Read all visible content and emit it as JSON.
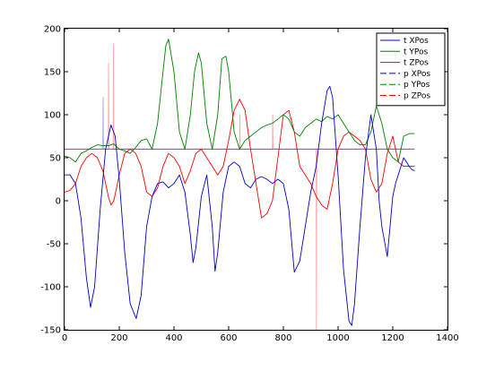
{
  "chart_data": {
    "type": "line",
    "title": "",
    "xlabel": "",
    "ylabel": "",
    "xlim": [
      0,
      1400
    ],
    "ylim": [
      -150,
      200
    ],
    "xticks": [
      0,
      200,
      400,
      600,
      800,
      1000,
      1200,
      1400
    ],
    "yticks": [
      -150,
      -100,
      -50,
      0,
      50,
      100,
      150,
      200
    ],
    "grid": false,
    "legend_position": "top-right",
    "series": [
      {
        "name": "t XPos",
        "color": "#0000cc",
        "style": "solid",
        "x": [
          0,
          20,
          40,
          60,
          80,
          95,
          110,
          130,
          150,
          170,
          185,
          200,
          220,
          240,
          262,
          280,
          300,
          320,
          340,
          360,
          380,
          400,
          420,
          440,
          460,
          470,
          480,
          500,
          520,
          540,
          550,
          560,
          580,
          600,
          620,
          640,
          660,
          680,
          700,
          720,
          740,
          760,
          780,
          800,
          820,
          840,
          860,
          880,
          900,
          920,
          940,
          960,
          970,
          980,
          1000,
          1020,
          1040,
          1050,
          1060,
          1080,
          1100,
          1120,
          1140,
          1150,
          1160,
          1180,
          1200,
          1210,
          1220,
          1240,
          1260,
          1270,
          1280
        ],
        "y": [
          30,
          30,
          20,
          -20,
          -90,
          -124,
          -100,
          -10,
          60,
          88,
          75,
          25,
          -60,
          -120,
          -137,
          -110,
          -30,
          5,
          20,
          22,
          15,
          20,
          30,
          10,
          -40,
          -72,
          -55,
          5,
          30,
          -30,
          -82,
          -60,
          10,
          40,
          45,
          40,
          20,
          15,
          25,
          28,
          25,
          20,
          25,
          20,
          -10,
          -83,
          -70,
          -30,
          10,
          40,
          90,
          128,
          133,
          120,
          30,
          -80,
          -140,
          -145,
          -120,
          -30,
          50,
          100,
          60,
          0,
          -30,
          -65,
          5,
          20,
          30,
          50,
          40,
          36,
          35
        ]
      },
      {
        "name": "t YPos",
        "color": "#008000",
        "style": "solid",
        "x": [
          0,
          20,
          40,
          60,
          80,
          100,
          120,
          140,
          160,
          180,
          200,
          220,
          240,
          260,
          280,
          300,
          320,
          340,
          360,
          370,
          380,
          400,
          420,
          440,
          460,
          475,
          490,
          500,
          520,
          540,
          560,
          575,
          590,
          600,
          620,
          640,
          660,
          680,
          700,
          720,
          740,
          760,
          780,
          800,
          820,
          840,
          860,
          880,
          900,
          920,
          940,
          960,
          980,
          1000,
          1020,
          1040,
          1060,
          1080,
          1100,
          1120,
          1140,
          1160,
          1180,
          1200,
          1220,
          1240,
          1260,
          1280
        ],
        "y": [
          52,
          50,
          45,
          55,
          58,
          62,
          65,
          64,
          64,
          66,
          60,
          58,
          55,
          62,
          70,
          72,
          60,
          90,
          150,
          180,
          188,
          150,
          80,
          60,
          100,
          150,
          172,
          160,
          90,
          60,
          100,
          165,
          168,
          150,
          80,
          60,
          70,
          75,
          80,
          85,
          88,
          90,
          95,
          100,
          95,
          80,
          75,
          85,
          90,
          95,
          92,
          98,
          95,
          100,
          90,
          80,
          70,
          65,
          65,
          80,
          110,
          90,
          60,
          50,
          45,
          75,
          78,
          78
        ]
      },
      {
        "name": "t ZPos",
        "color": "#ff0000",
        "style": "solid",
        "x": [
          0,
          20,
          40,
          60,
          80,
          100,
          120,
          140,
          160,
          170,
          180,
          200,
          220,
          240,
          260,
          280,
          300,
          320,
          340,
          360,
          380,
          400,
          420,
          440,
          460,
          480,
          500,
          520,
          540,
          560,
          580,
          600,
          620,
          640,
          660,
          680,
          700,
          720,
          740,
          760,
          780,
          800,
          820,
          840,
          860,
          880,
          900,
          920,
          940,
          960,
          980,
          1000,
          1020,
          1040,
          1060,
          1080,
          1100,
          1120,
          1140,
          1160,
          1180,
          1200,
          1220,
          1240,
          1260,
          1280
        ],
        "y": [
          10,
          12,
          20,
          40,
          50,
          55,
          50,
          35,
          5,
          -5,
          0,
          30,
          55,
          60,
          55,
          40,
          10,
          5,
          15,
          40,
          55,
          50,
          40,
          20,
          35,
          55,
          60,
          50,
          40,
          30,
          40,
          70,
          105,
          118,
          105,
          60,
          20,
          -20,
          -15,
          0,
          50,
          100,
          105,
          80,
          40,
          30,
          20,
          5,
          -5,
          -10,
          20,
          60,
          75,
          80,
          75,
          70,
          60,
          25,
          10,
          20,
          55,
          75,
          45,
          40,
          40,
          40
        ]
      },
      {
        "name": "p XPos",
        "color": "#0000cc",
        "style": "dashed",
        "x": [
          0,
          140,
          141,
          142,
          1280
        ],
        "y": [
          60,
          60,
          120,
          60,
          60
        ]
      },
      {
        "name": "p YPos",
        "color": "#008000",
        "style": "dashed",
        "x": [
          0,
          1280
        ],
        "y": [
          60,
          60
        ]
      },
      {
        "name": "p ZPos",
        "color": "#ff0000",
        "style": "dashed",
        "x": [
          0,
          160,
          161,
          162,
          178,
          179,
          180,
          640,
          641,
          642,
          760,
          761,
          762,
          920,
          921,
          922,
          1280
        ],
        "y": [
          60,
          60,
          160,
          60,
          60,
          182,
          60,
          60,
          100,
          60,
          60,
          100,
          60,
          60,
          -150,
          60,
          60
        ]
      }
    ]
  }
}
